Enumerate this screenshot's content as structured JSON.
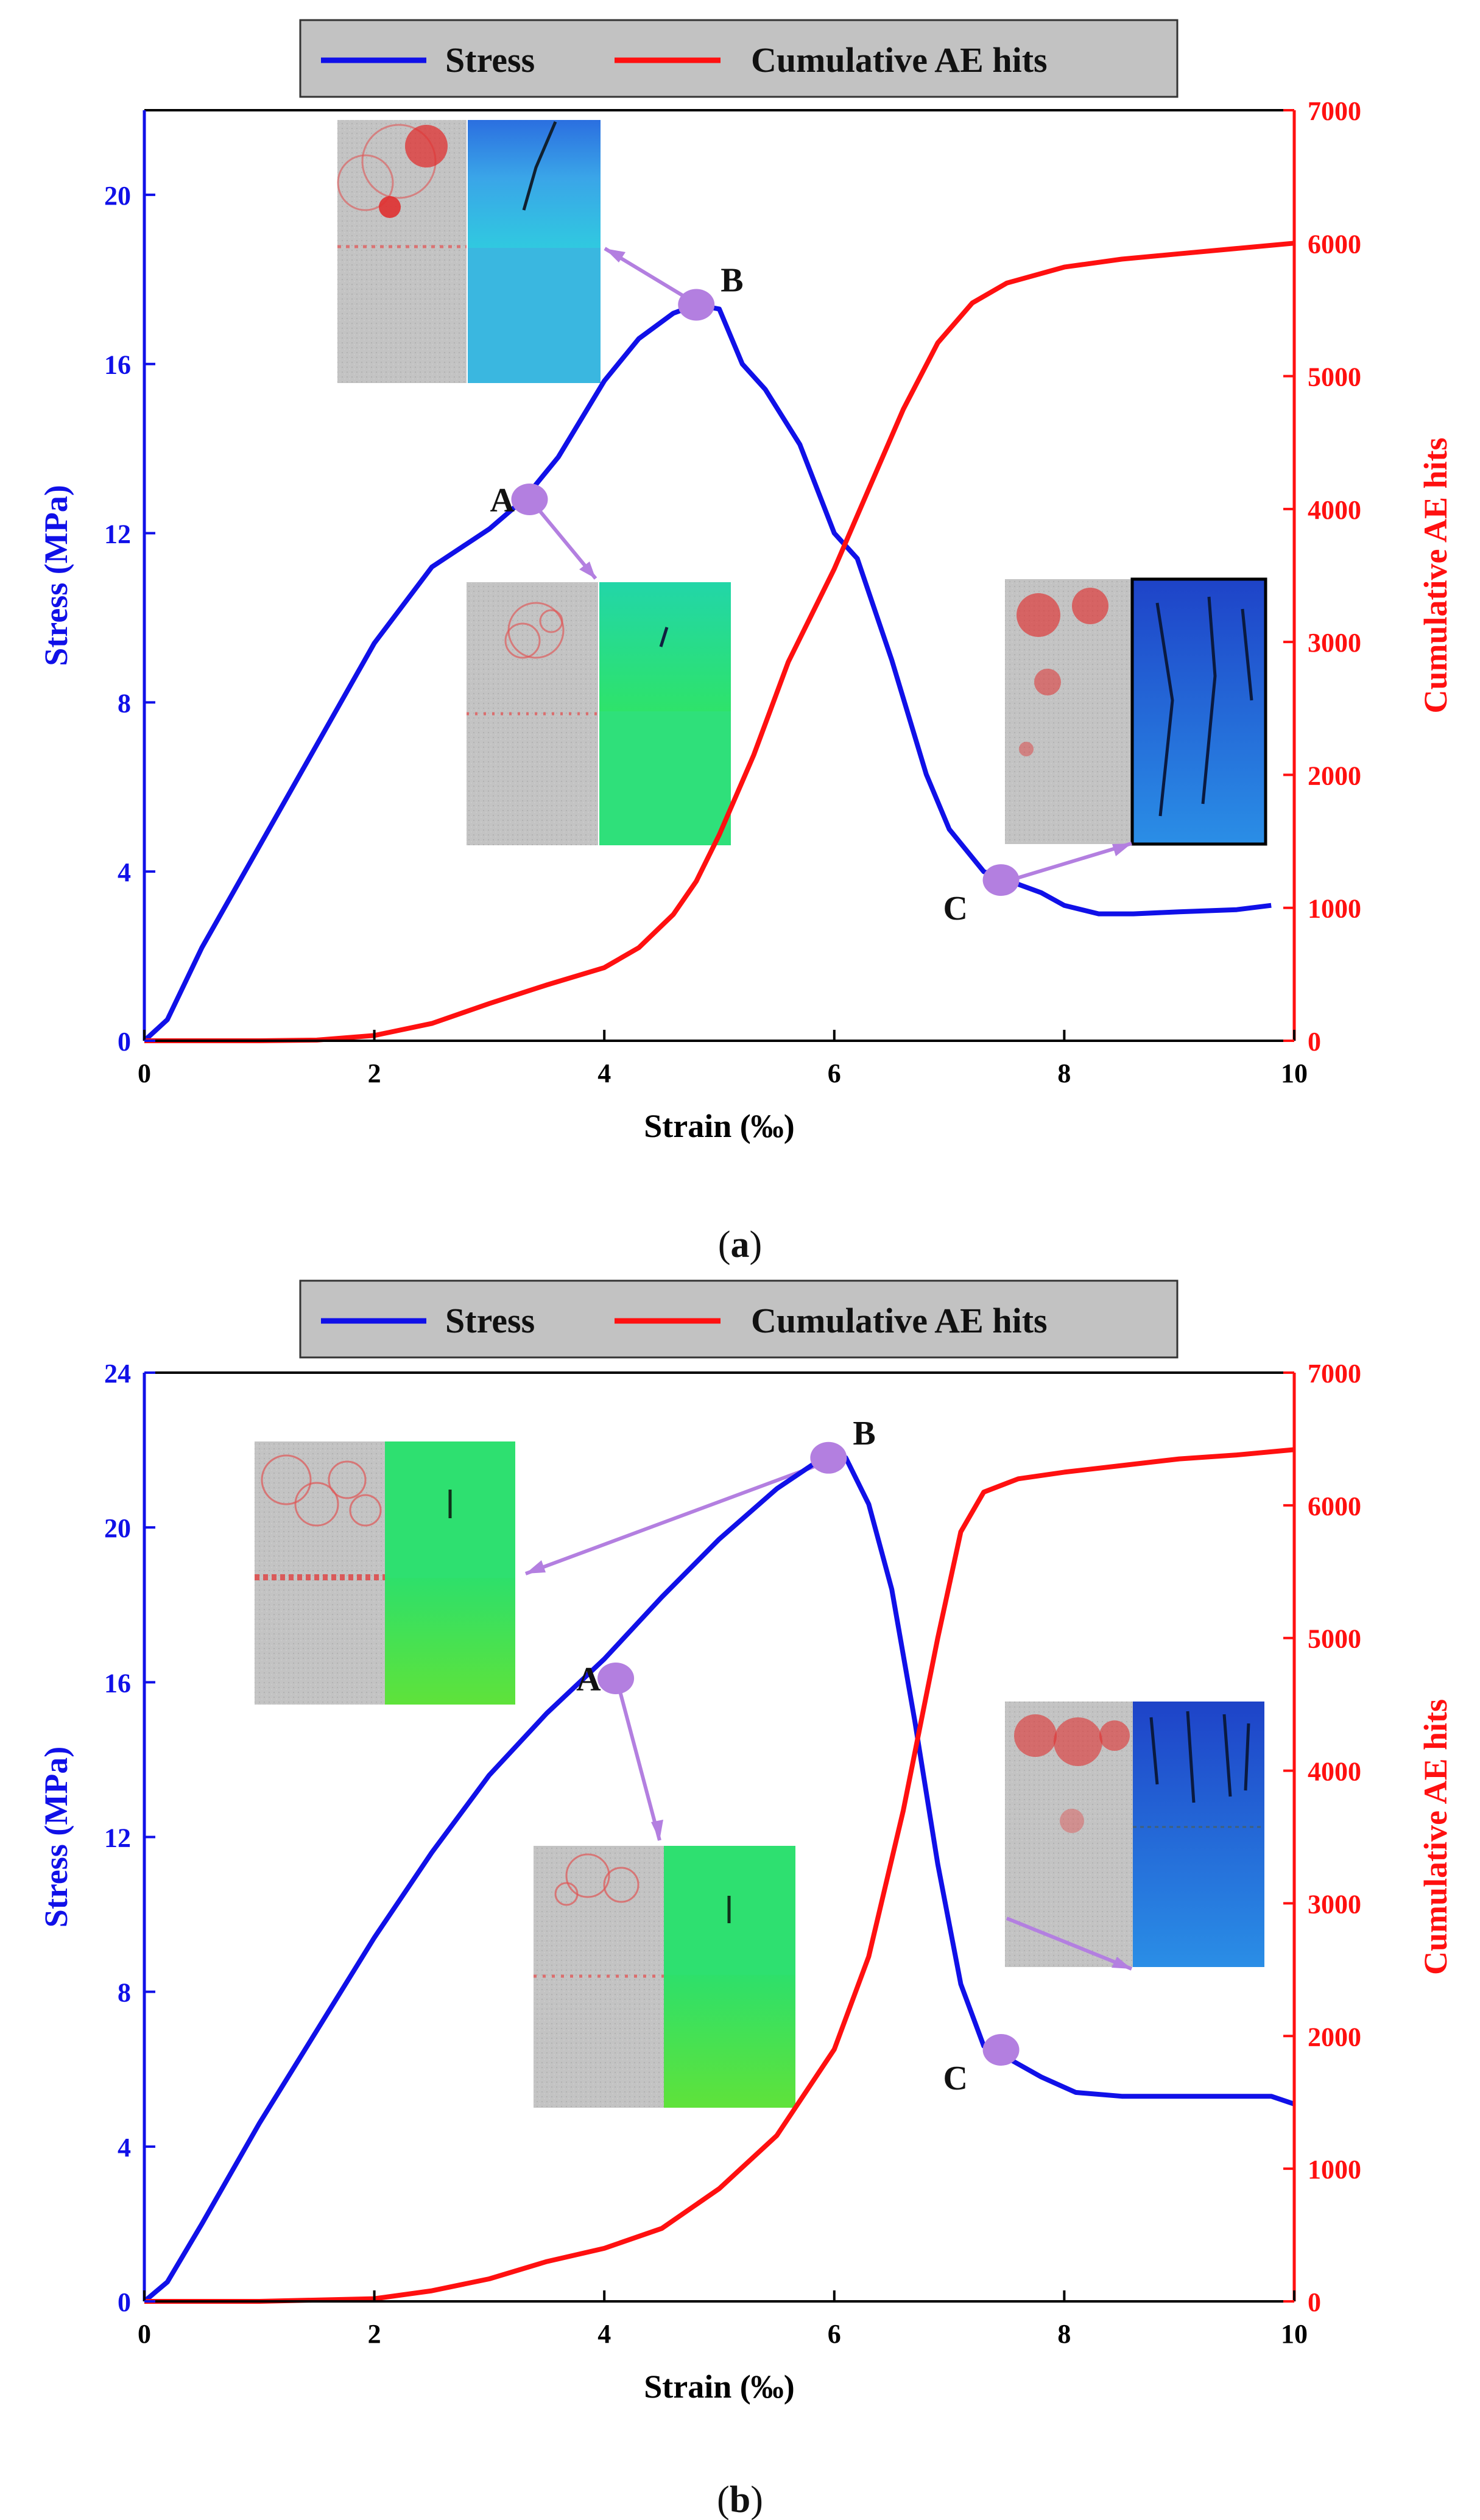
{
  "legend": {
    "stress": "Stress",
    "ae": "Cumulative AE hits"
  },
  "colors": {
    "stress": "#1010e8",
    "ae": "#ff1010",
    "marker": "#b37fe0",
    "frame": "#000000"
  },
  "chart_data": [
    {
      "type": "line",
      "caption_label": "a",
      "xlabel": "Strain (‰)",
      "ylabel": "Stress (MPa)",
      "y2label": "Cumulative AE hits",
      "xlim": [
        0,
        10
      ],
      "ylim": [
        0,
        22
      ],
      "y2lim": [
        0,
        7000
      ],
      "xticks": [
        0,
        2,
        4,
        6,
        8,
        10
      ],
      "yticks": [
        0,
        4,
        8,
        12,
        16,
        20
      ],
      "y2ticks": [
        0,
        1000,
        2000,
        3000,
        4000,
        5000,
        6000,
        7000
      ],
      "series": [
        {
          "name": "Stress",
          "axis": "left",
          "x": [
            0,
            0.2,
            0.5,
            1.0,
            1.5,
            2.0,
            2.5,
            3.0,
            3.3,
            3.6,
            4.0,
            4.3,
            4.6,
            4.8,
            5.0,
            5.2,
            5.4,
            5.7,
            6.0,
            6.2,
            6.5,
            6.8,
            7.0,
            7.3,
            7.5,
            7.8,
            8.0,
            8.3,
            8.6,
            9.0,
            9.5,
            9.8
          ],
          "y": [
            0,
            0.5,
            2.2,
            4.6,
            7.0,
            9.4,
            11.2,
            12.1,
            12.8,
            13.8,
            15.6,
            16.6,
            17.2,
            17.4,
            17.3,
            16.0,
            15.4,
            14.1,
            12.0,
            11.4,
            9.0,
            6.3,
            5.0,
            4.0,
            3.8,
            3.5,
            3.2,
            3.0,
            3.0,
            3.05,
            3.1,
            3.2
          ]
        },
        {
          "name": "Cumulative AE hits",
          "axis": "right",
          "x": [
            0,
            1.0,
            1.5,
            2.0,
            2.5,
            3.0,
            3.5,
            4.0,
            4.3,
            4.6,
            4.8,
            5.0,
            5.3,
            5.6,
            6.0,
            6.3,
            6.6,
            6.9,
            7.2,
            7.5,
            8.0,
            8.5,
            9.0,
            9.5,
            10.0
          ],
          "y": [
            0,
            0,
            5,
            40,
            130,
            280,
            420,
            550,
            700,
            950,
            1200,
            1550,
            2150,
            2850,
            3550,
            4150,
            4750,
            5250,
            5550,
            5700,
            5820,
            5880,
            5920,
            5960,
            6000
          ]
        }
      ],
      "points": [
        {
          "label": "A",
          "x": 3.35,
          "y": 12.8
        },
        {
          "label": "B",
          "x": 4.8,
          "y": 17.4
        },
        {
          "label": "C",
          "x": 7.45,
          "y": 3.8
        }
      ]
    },
    {
      "type": "line",
      "caption_label": "b",
      "xlabel": "Strain (‰)",
      "ylabel": "Stress (MPa)",
      "y2label": "Cumulative AE hits",
      "xlim": [
        0,
        10
      ],
      "ylim": [
        0,
        24
      ],
      "y2lim": [
        0,
        7000
      ],
      "xticks": [
        0,
        2,
        4,
        6,
        8,
        10
      ],
      "yticks": [
        0,
        4,
        8,
        12,
        16,
        20,
        24
      ],
      "y2ticks": [
        0,
        1000,
        2000,
        3000,
        4000,
        5000,
        6000,
        7000
      ],
      "series": [
        {
          "name": "Stress",
          "axis": "left",
          "x": [
            0,
            0.2,
            0.5,
            1.0,
            1.5,
            2.0,
            2.5,
            3.0,
            3.5,
            4.0,
            4.5,
            5.0,
            5.5,
            5.9,
            6.1,
            6.3,
            6.5,
            6.7,
            6.9,
            7.1,
            7.3,
            7.5,
            7.8,
            8.1,
            8.5,
            9.0,
            9.5,
            9.8,
            10.0
          ],
          "y": [
            0,
            0.5,
            2.0,
            4.6,
            7.0,
            9.4,
            11.6,
            13.6,
            15.2,
            16.6,
            18.2,
            19.7,
            21.0,
            21.8,
            21.8,
            20.6,
            18.4,
            15.0,
            11.3,
            8.2,
            6.6,
            6.3,
            5.8,
            5.4,
            5.3,
            5.3,
            5.3,
            5.3,
            5.1
          ]
        },
        {
          "name": "Cumulative AE hits",
          "axis": "right",
          "x": [
            0,
            1.0,
            2.0,
            2.5,
            3.0,
            3.5,
            4.0,
            4.5,
            5.0,
            5.5,
            6.0,
            6.3,
            6.6,
            6.9,
            7.1,
            7.3,
            7.6,
            8.0,
            8.5,
            9.0,
            9.5,
            10.0
          ],
          "y": [
            0,
            0,
            20,
            80,
            170,
            300,
            400,
            550,
            850,
            1250,
            1900,
            2600,
            3700,
            5000,
            5800,
            6100,
            6200,
            6250,
            6300,
            6350,
            6380,
            6420
          ]
        }
      ],
      "points": [
        {
          "label": "A",
          "x": 4.1,
          "y": 16.1
        },
        {
          "label": "B",
          "x": 5.95,
          "y": 21.8
        },
        {
          "label": "C",
          "x": 7.45,
          "y": 6.5
        }
      ]
    }
  ]
}
